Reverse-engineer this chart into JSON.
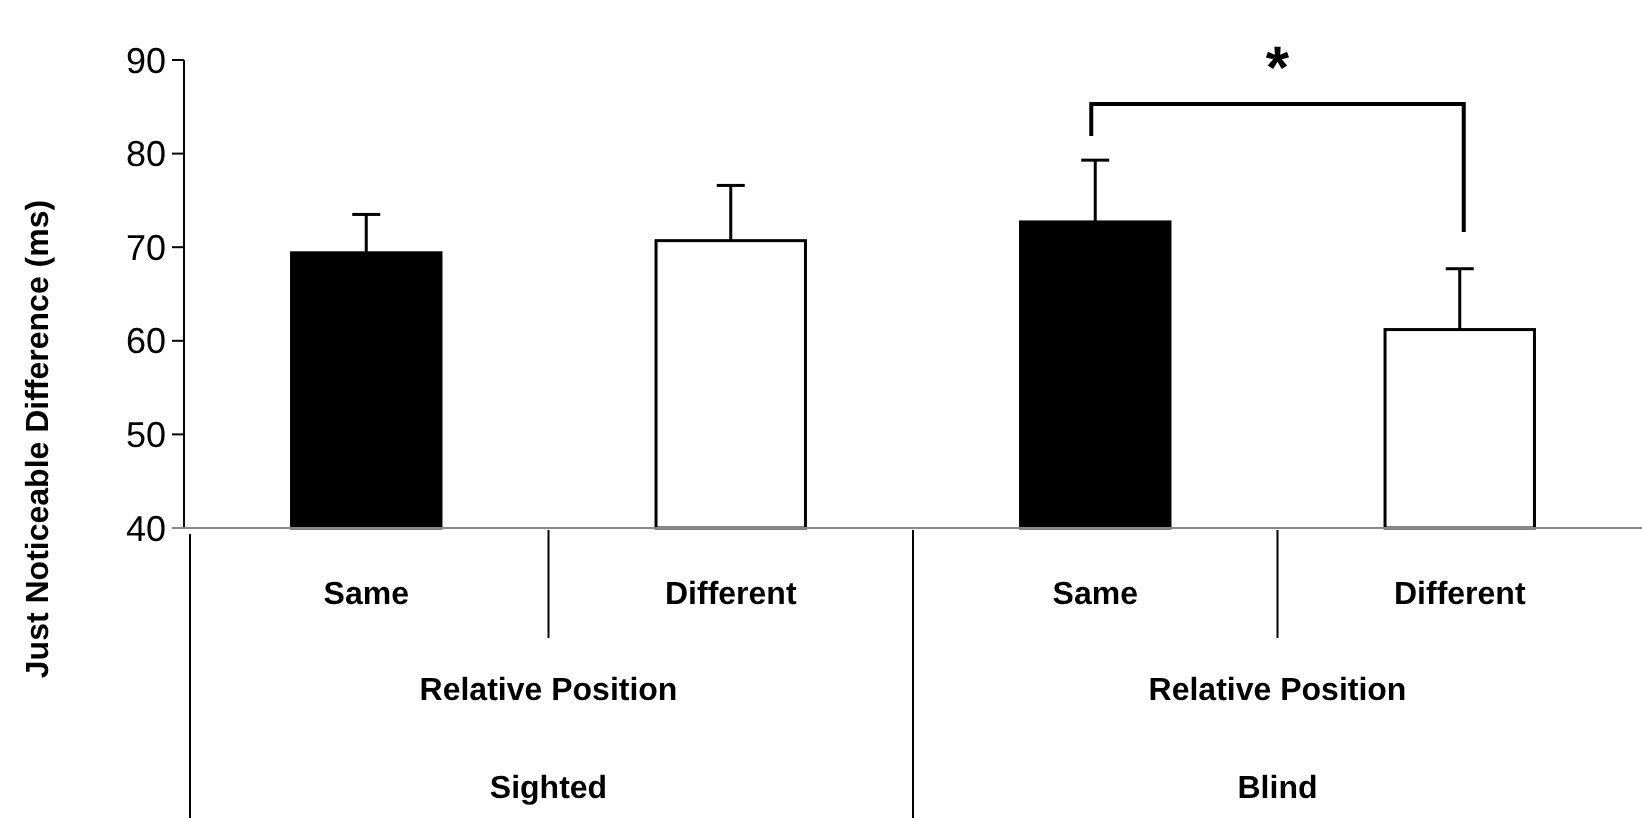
{
  "chart_data": {
    "type": "bar",
    "ylabel": "Just Noticeable Difference (ms)",
    "categories": [
      "Same",
      "Different",
      "Same",
      "Different"
    ],
    "values": [
      69.4,
      70.7,
      72.7,
      61.2
    ],
    "colors": [
      "#000000",
      "#ffffff",
      "#000000",
      "#ffffff"
    ],
    "errors": [
      [
        69.4,
        73.5
      ],
      [
        70.7,
        76.6
      ],
      [
        72.7,
        79.3
      ],
      [
        61.2,
        67.7
      ]
    ],
    "ylim": [
      40,
      90
    ],
    "yticks": [
      40,
      50,
      60,
      70,
      80,
      90
    ],
    "grid": false,
    "annotations": [
      "*",
      "Relative Position",
      "Relative Position",
      "Sighted",
      "Blind"
    ]
  }
}
